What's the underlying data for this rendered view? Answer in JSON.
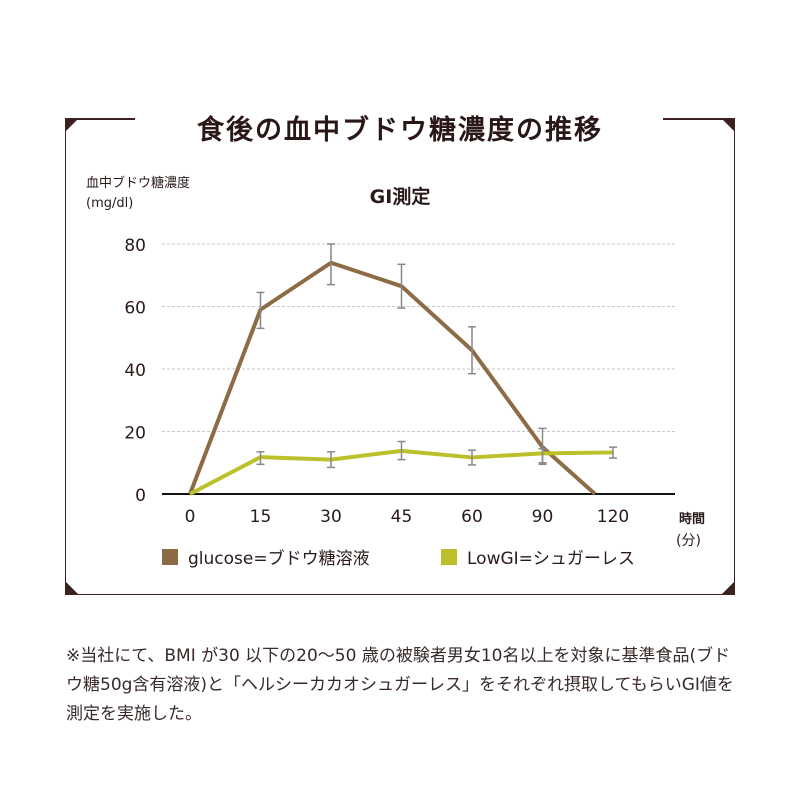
{
  "title": "食後の血中ブドウ糖濃度の推移",
  "colors": {
    "frame": "#3a2222",
    "glucose": "#8c6b45",
    "lowgi": "#bcc02a",
    "error_bar": "#888888",
    "grid": "#c8c8c8"
  },
  "chart_data": {
    "type": "line",
    "title": "GI測定",
    "ylabel": [
      "血中ブドウ糖濃度",
      "(mg/dl)"
    ],
    "xlabel": [
      "時間",
      "(分)"
    ],
    "categories": [
      "0",
      "15",
      "30",
      "45",
      "60",
      "90",
      "120"
    ],
    "yticks": [
      "0",
      "20",
      "40",
      "60",
      "80"
    ],
    "ylim": [
      0,
      80
    ],
    "grid": true,
    "legend_position": "bottom",
    "series": [
      {
        "name": "glucose=ブドウ糖溶液",
        "values": [
          0,
          59,
          74,
          66.5,
          46,
          15,
          0
        ],
        "error_low": [
          null,
          53,
          67,
          59.5,
          38.5,
          9.5,
          null
        ],
        "error_high": [
          null,
          64.5,
          80,
          73.5,
          53.5,
          21,
          null
        ]
      },
      {
        "name": "LowGI=シュガーレス",
        "values": [
          0,
          11.8,
          11,
          13.8,
          11.7,
          13,
          13.3
        ],
        "error_low": [
          null,
          9.5,
          8.5,
          11,
          9.3,
          10,
          11.5
        ],
        "error_high": [
          null,
          13.5,
          13.5,
          16.8,
          14,
          14.5,
          15
        ]
      }
    ]
  },
  "note": "※当社にて、BMI が30 以下の20〜50 歳の被験者男女10名以上を対象に基準食品(ブドウ糖50g含有溶液)と「ヘルシーカカオシュガーレス」をそれぞれ摂取してもらいGI値を測定を実施した。"
}
